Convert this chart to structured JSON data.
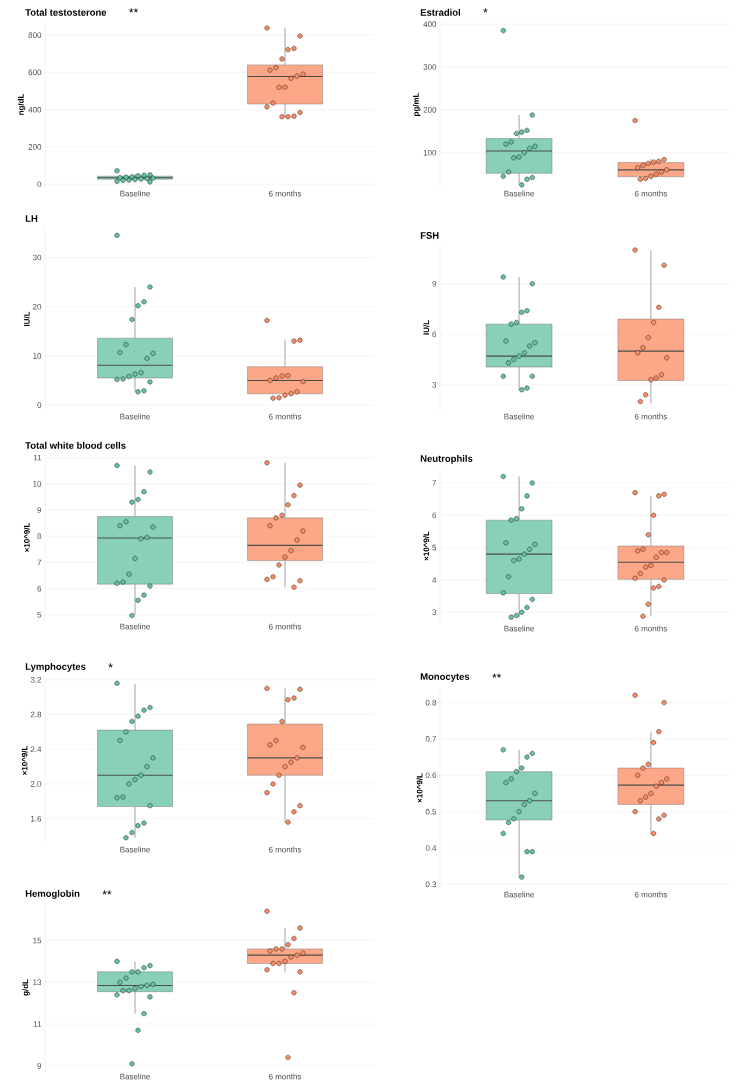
{
  "chart_data": [
    {
      "type": "box",
      "title": "Total testosterone",
      "annotations": [
        "**"
      ],
      "ylabel": "ng/dL",
      "categories": [
        "Baseline",
        "6 months"
      ],
      "colors": [
        "#88d0b7",
        "#fca888"
      ],
      "grid": "y",
      "ylim": [
        -15,
        870
      ],
      "yticks": [
        0,
        200,
        400,
        600,
        800
      ],
      "boxes": [
        {
          "low": 12,
          "q1": 27,
          "median": 35,
          "q3": 43,
          "high": 55
        },
        {
          "low": 360,
          "q1": 430,
          "median": 578,
          "q3": 640,
          "high": 838
        }
      ],
      "series": [
        {
          "type": "scatter",
          "color": "#66c2a5",
          "x": [
            "Baseline",
            "Baseline",
            "Baseline",
            "Baseline",
            "Baseline",
            "Baseline",
            "Baseline",
            "Baseline",
            "Baseline",
            "Baseline",
            "Baseline",
            "Baseline",
            "Baseline",
            "Baseline",
            "Baseline"
          ],
          "values": [
            72,
            50,
            48,
            45,
            40,
            38,
            35,
            33,
            30,
            28,
            25,
            22,
            20,
            15,
            12
          ]
        },
        {
          "type": "scatter",
          "color": "#fc8d62",
          "x": [
            "6 months",
            "6 months",
            "6 months",
            "6 months",
            "6 months",
            "6 months",
            "6 months",
            "6 months",
            "6 months",
            "6 months",
            "6 months",
            "6 months",
            "6 months",
            "6 months",
            "6 months",
            "6 months",
            "6 months",
            "6 months"
          ],
          "values": [
            838,
            795,
            728,
            722,
            672,
            625,
            612,
            590,
            580,
            568,
            520,
            520,
            435,
            415,
            385,
            365,
            362,
            362
          ]
        }
      ]
    },
    {
      "type": "box",
      "title": "Estradiol",
      "annotations": [
        "*"
      ],
      "ylabel": "pg/mL",
      "categories": [
        "Baseline",
        "6 months"
      ],
      "colors": [
        "#88d0b7",
        "#fca888"
      ],
      "grid": "y",
      "ylim": [
        20,
        405
      ],
      "yticks": [
        100,
        200,
        300,
        400
      ],
      "boxes": [
        {
          "low": 26,
          "q1": 52,
          "median": 104,
          "q3": 133,
          "high": 188
        },
        {
          "low": 37,
          "q1": 44,
          "median": 60,
          "q3": 77,
          "high": 85
        }
      ],
      "series": [
        {
          "type": "scatter",
          "color": "#66c2a5",
          "x": [
            "Baseline",
            "Baseline",
            "Baseline",
            "Baseline",
            "Baseline",
            "Baseline",
            "Baseline",
            "Baseline",
            "Baseline",
            "Baseline",
            "Baseline",
            "Baseline",
            "Baseline",
            "Baseline",
            "Baseline",
            "Baseline",
            "Baseline"
          ],
          "values": [
            385,
            188,
            152,
            148,
            145,
            125,
            120,
            115,
            110,
            100,
            90,
            88,
            55,
            45,
            42,
            38,
            25
          ]
        },
        {
          "type": "scatter",
          "color": "#fc8d62",
          "x": [
            "6 months",
            "6 months",
            "6 months",
            "6 months",
            "6 months",
            "6 months",
            "6 months",
            "6 months",
            "6 months",
            "6 months",
            "6 months",
            "6 months",
            "6 months"
          ],
          "values": [
            175,
            84,
            80,
            78,
            75,
            70,
            65,
            60,
            55,
            50,
            45,
            40,
            38
          ]
        }
      ]
    },
    {
      "type": "box",
      "title": "LH",
      "ylabel": "IU/L",
      "categories": [
        "Baseline",
        "6 months"
      ],
      "colors": [
        "#88d0b7",
        "#fca888"
      ],
      "grid": "y",
      "ylim": [
        -1,
        36
      ],
      "yticks": [
        0,
        10,
        20,
        30
      ],
      "boxes": [
        {
          "low": 2.7,
          "q1": 5.5,
          "median": 8.1,
          "q3": 13.6,
          "high": 24
        },
        {
          "low": 1.4,
          "q1": 2.3,
          "median": 5,
          "q3": 7.8,
          "high": 13.2
        }
      ],
      "series": [
        {
          "type": "scatter",
          "color": "#66c2a5",
          "x": [
            "Baseline",
            "Baseline",
            "Baseline",
            "Baseline",
            "Baseline",
            "Baseline",
            "Baseline",
            "Baseline",
            "Baseline",
            "Baseline",
            "Baseline",
            "Baseline",
            "Baseline",
            "Baseline",
            "Baseline",
            "Baseline",
            "Baseline"
          ],
          "values": [
            34.5,
            24,
            21,
            20.2,
            17.4,
            12.3,
            10.7,
            10.5,
            9.5,
            6.6,
            6.3,
            5.8,
            5.3,
            5.2,
            4.7,
            2.9,
            2.7
          ]
        },
        {
          "type": "scatter",
          "color": "#fc8d62",
          "x": [
            "6 months",
            "6 months",
            "6 months",
            "6 months",
            "6 months",
            "6 months",
            "6 months",
            "6 months",
            "6 months",
            "6 months",
            "6 months",
            "6 months",
            "6 months"
          ],
          "values": [
            17.2,
            13.2,
            13,
            6,
            5.9,
            5.5,
            5,
            4.8,
            2.7,
            2.3,
            2,
            1.5,
            1.4
          ]
        }
      ]
    },
    {
      "type": "box",
      "title": "FSH",
      "ylabel": "IU/L",
      "categories": [
        "Baseline",
        "6 months"
      ],
      "colors": [
        "#88d0b7",
        "#fca888"
      ],
      "grid": "y",
      "ylim": [
        1.5,
        11.3
      ],
      "yticks": [
        3,
        6,
        9
      ],
      "boxes": [
        {
          "low": 2.7,
          "q1": 4.05,
          "median": 4.7,
          "q3": 6.6,
          "high": 9.4
        },
        {
          "low": 1.9,
          "q1": 3.25,
          "median": 5,
          "q3": 6.9,
          "high": 11
        }
      ],
      "series": [
        {
          "type": "scatter",
          "color": "#66c2a5",
          "x": [
            "Baseline",
            "Baseline",
            "Baseline",
            "Baseline",
            "Baseline",
            "Baseline",
            "Baseline",
            "Baseline",
            "Baseline",
            "Baseline",
            "Baseline",
            "Baseline",
            "Baseline",
            "Baseline",
            "Baseline",
            "Baseline",
            "Baseline"
          ],
          "values": [
            9.4,
            9,
            7.4,
            7.3,
            6.7,
            6.6,
            5.6,
            5.5,
            5.3,
            4.9,
            4.7,
            4.5,
            4.3,
            3.5,
            3.5,
            2.8,
            2.7
          ]
        },
        {
          "type": "scatter",
          "color": "#fc8d62",
          "x": [
            "6 months",
            "6 months",
            "6 months",
            "6 months",
            "6 months",
            "6 months",
            "6 months",
            "6 months",
            "6 months",
            "6 months",
            "6 months",
            "6 months",
            "6 months"
          ],
          "values": [
            11,
            10.1,
            7.6,
            6.7,
            5.8,
            5.2,
            4.9,
            4.6,
            3.6,
            3.4,
            3.3,
            2.4,
            2
          ]
        }
      ]
    },
    {
      "type": "box",
      "title": "Total white blood cells",
      "ylabel": "×10^9/L",
      "categories": [
        "Baseline",
        "6 months"
      ],
      "colors": [
        "#88d0b7",
        "#fca888"
      ],
      "grid": "y",
      "ylim": [
        4.8,
        11.1
      ],
      "yticks": [
        5,
        6,
        7,
        8,
        9,
        10,
        11
      ],
      "boxes": [
        {
          "low": 5,
          "q1": 6.17,
          "median": 7.93,
          "q3": 8.75,
          "high": 10.7
        },
        {
          "low": 6.05,
          "q1": 7.07,
          "median": 7.65,
          "q3": 8.7,
          "high": 10.8
        }
      ],
      "series": [
        {
          "type": "scatter",
          "color": "#66c2a5",
          "x": [
            "Baseline",
            "Baseline",
            "Baseline",
            "Baseline",
            "Baseline",
            "Baseline",
            "Baseline",
            "Baseline",
            "Baseline",
            "Baseline",
            "Baseline",
            "Baseline",
            "Baseline",
            "Baseline",
            "Baseline",
            "Baseline",
            "Baseline",
            "Baseline"
          ],
          "values": [
            10.7,
            10.45,
            9.7,
            9.4,
            9.3,
            8.55,
            8.4,
            8.35,
            7.95,
            7.9,
            7.15,
            6.55,
            6.25,
            6.2,
            6.1,
            5.75,
            5.55,
            4.97
          ]
        },
        {
          "type": "scatter",
          "color": "#fc8d62",
          "x": [
            "6 months",
            "6 months",
            "6 months",
            "6 months",
            "6 months",
            "6 months",
            "6 months",
            "6 months",
            "6 months",
            "6 months",
            "6 months",
            "6 months",
            "6 months",
            "6 months",
            "6 months",
            "6 months"
          ],
          "values": [
            10.8,
            9.95,
            9.55,
            9.2,
            8.8,
            8.7,
            8.4,
            8.2,
            7.85,
            7.45,
            7.2,
            6.9,
            6.45,
            6.35,
            6.3,
            6.05
          ]
        }
      ]
    },
    {
      "type": "box",
      "title": "Neutrophils",
      "ylabel": "×10^9/L",
      "categories": [
        "Baseline",
        "6 months"
      ],
      "colors": [
        "#88d0b7",
        "#fca888"
      ],
      "grid": "y",
      "ylim": [
        2.7,
        7.4
      ],
      "yticks": [
        3,
        4,
        5,
        6,
        7
      ],
      "boxes": [
        {
          "low": 2.85,
          "q1": 3.58,
          "median": 4.8,
          "q3": 5.85,
          "high": 7.2
        },
        {
          "low": 2.88,
          "q1": 4.02,
          "median": 4.55,
          "q3": 5.05,
          "high": 6.6
        }
      ],
      "series": [
        {
          "type": "scatter",
          "color": "#66c2a5",
          "x": [
            "Baseline",
            "Baseline",
            "Baseline",
            "Baseline",
            "Baseline",
            "Baseline",
            "Baseline",
            "Baseline",
            "Baseline",
            "Baseline",
            "Baseline",
            "Baseline",
            "Baseline",
            "Baseline",
            "Baseline",
            "Baseline",
            "Baseline",
            "Baseline",
            "Baseline"
          ],
          "values": [
            7.2,
            7,
            6.6,
            6.2,
            5.9,
            5.85,
            5.15,
            5.1,
            4.95,
            4.8,
            4.65,
            4.6,
            4.1,
            3.6,
            3.4,
            3.15,
            3,
            2.9,
            2.85
          ]
        },
        {
          "type": "scatter",
          "color": "#fc8d62",
          "x": [
            "6 months",
            "6 months",
            "6 months",
            "6 months",
            "6 months",
            "6 months",
            "6 months",
            "6 months",
            "6 months",
            "6 months",
            "6 months",
            "6 months",
            "6 months",
            "6 months",
            "6 months",
            "6 months",
            "6 months",
            "6 months",
            "6 months"
          ],
          "values": [
            6.7,
            6.65,
            6.6,
            6,
            5.4,
            4.95,
            4.9,
            4.85,
            4.85,
            4.7,
            4.45,
            4.4,
            4.2,
            4.05,
            4,
            3.8,
            3.75,
            3.25,
            2.88
          ]
        }
      ]
    },
    {
      "type": "box",
      "title": "Lymphocytes",
      "annotations": [
        "*"
      ],
      "ylabel": "×10^9/L",
      "categories": [
        "Baseline",
        "6 months"
      ],
      "colors": [
        "#88d0b7",
        "#fca888"
      ],
      "grid": "y",
      "ylim": [
        1.32,
        3.22
      ],
      "yticks": [
        1.6,
        {
          "value": 2,
          "label": "2.0"
        },
        2.4,
        2.8,
        3.2
      ],
      "boxes": [
        {
          "low": 1.38,
          "q1": 1.74,
          "median": 2.1,
          "q3": 2.62,
          "high": 3.15
        },
        {
          "low": 1.56,
          "q1": 2.1,
          "median": 2.3,
          "q3": 2.69,
          "high": 3.1
        }
      ],
      "series": [
        {
          "type": "scatter",
          "color": "#66c2a5",
          "x": [
            "Baseline",
            "Baseline",
            "Baseline",
            "Baseline",
            "Baseline",
            "Baseline",
            "Baseline",
            "Baseline",
            "Baseline",
            "Baseline",
            "Baseline",
            "Baseline",
            "Baseline",
            "Baseline",
            "Baseline",
            "Baseline",
            "Baseline",
            "Baseline",
            "Baseline"
          ],
          "values": [
            3.16,
            2.88,
            2.85,
            2.78,
            2.72,
            2.6,
            2.5,
            2.3,
            2.2,
            2.1,
            2.05,
            2,
            1.85,
            1.84,
            1.75,
            1.55,
            1.52,
            1.44,
            1.38
          ]
        },
        {
          "type": "scatter",
          "color": "#fc8d62",
          "x": [
            "6 months",
            "6 months",
            "6 months",
            "6 months",
            "6 months",
            "6 months",
            "6 months",
            "6 months",
            "6 months",
            "6 months",
            "6 months",
            "6 months",
            "6 months",
            "6 months",
            "6 months",
            "6 months",
            "6 months"
          ],
          "values": [
            3.1,
            3.09,
            2.99,
            2.97,
            2.72,
            2.5,
            2.45,
            2.42,
            2.3,
            2.25,
            2.2,
            2.1,
            2,
            1.9,
            1.75,
            1.68,
            1.56
          ]
        }
      ]
    },
    {
      "type": "box",
      "title": "Monocytes",
      "annotations": [
        "**"
      ],
      "ylabel": "×10^9/L",
      "categories": [
        "Baseline",
        "6 months"
      ],
      "colors": [
        "#88d0b7",
        "#fca888"
      ],
      "grid": "y",
      "ylim": [
        0.29,
        0.84
      ],
      "yticks": [
        0.3,
        0.4,
        0.5,
        0.6,
        0.7,
        0.8
      ],
      "boxes": [
        {
          "low": 0.32,
          "q1": 0.477,
          "median": 0.53,
          "q3": 0.61,
          "high": 0.67
        },
        {
          "low": 0.44,
          "q1": 0.52,
          "median": 0.573,
          "q3": 0.62,
          "high": 0.72
        }
      ],
      "series": [
        {
          "type": "scatter",
          "color": "#66c2a5",
          "x": [
            "Baseline",
            "Baseline",
            "Baseline",
            "Baseline",
            "Baseline",
            "Baseline",
            "Baseline",
            "Baseline",
            "Baseline",
            "Baseline",
            "Baseline",
            "Baseline",
            "Baseline",
            "Baseline",
            "Baseline",
            "Baseline",
            "Baseline"
          ],
          "values": [
            0.67,
            0.66,
            0.65,
            0.62,
            0.61,
            0.59,
            0.58,
            0.55,
            0.53,
            0.52,
            0.5,
            0.48,
            0.47,
            0.44,
            0.39,
            0.39,
            0.32
          ]
        },
        {
          "type": "scatter",
          "color": "#fc8d62",
          "x": [
            "6 months",
            "6 months",
            "6 months",
            "6 months",
            "6 months",
            "6 months",
            "6 months",
            "6 months",
            "6 months",
            "6 months",
            "6 months",
            "6 months",
            "6 months",
            "6 months",
            "6 months",
            "6 months",
            "6 months"
          ],
          "values": [
            0.82,
            0.8,
            0.72,
            0.69,
            0.63,
            0.62,
            0.6,
            0.59,
            0.58,
            0.57,
            0.55,
            0.54,
            0.53,
            0.5,
            0.49,
            0.48,
            0.44
          ]
        }
      ]
    },
    {
      "type": "box",
      "title": "Hemoglobin",
      "annotations": [
        "**"
      ],
      "ylabel": "g/dL",
      "categories": [
        "Baseline",
        "6 months"
      ],
      "colors": [
        "#88d0b7",
        "#fca888"
      ],
      "grid": "y",
      "ylim": [
        8.8,
        16.7
      ],
      "yticks": [
        9,
        11,
        13,
        15
      ],
      "boxes": [
        {
          "low": 11.5,
          "q1": 12.55,
          "median": 12.85,
          "q3": 13.5,
          "high": 14
        },
        {
          "low": 13.5,
          "q1": 13.9,
          "median": 14.3,
          "q3": 14.6,
          "high": 15.6
        }
      ],
      "series": [
        {
          "type": "scatter",
          "color": "#66c2a5",
          "x": [
            "Baseline",
            "Baseline",
            "Baseline",
            "Baseline",
            "Baseline",
            "Baseline",
            "Baseline",
            "Baseline",
            "Baseline",
            "Baseline",
            "Baseline",
            "Baseline",
            "Baseline",
            "Baseline",
            "Baseline",
            "Baseline",
            "Baseline",
            "Baseline"
          ],
          "values": [
            14,
            13.8,
            13.7,
            13.5,
            13.5,
            13.2,
            13,
            12.9,
            12.85,
            12.8,
            12.7,
            12.6,
            12.6,
            12.4,
            12.3,
            11.5,
            10.7,
            9.1
          ]
        },
        {
          "type": "scatter",
          "color": "#fc8d62",
          "x": [
            "6 months",
            "6 months",
            "6 months",
            "6 months",
            "6 months",
            "6 months",
            "6 months",
            "6 months",
            "6 months",
            "6 months",
            "6 months",
            "6 months",
            "6 months",
            "6 months",
            "6 months",
            "6 months",
            "6 months"
          ],
          "values": [
            16.4,
            15.6,
            15.1,
            14.8,
            14.6,
            14.6,
            14.5,
            14.4,
            14.3,
            14.2,
            14,
            13.9,
            13.9,
            13.6,
            13.5,
            12.5,
            9.4
          ]
        }
      ]
    }
  ]
}
